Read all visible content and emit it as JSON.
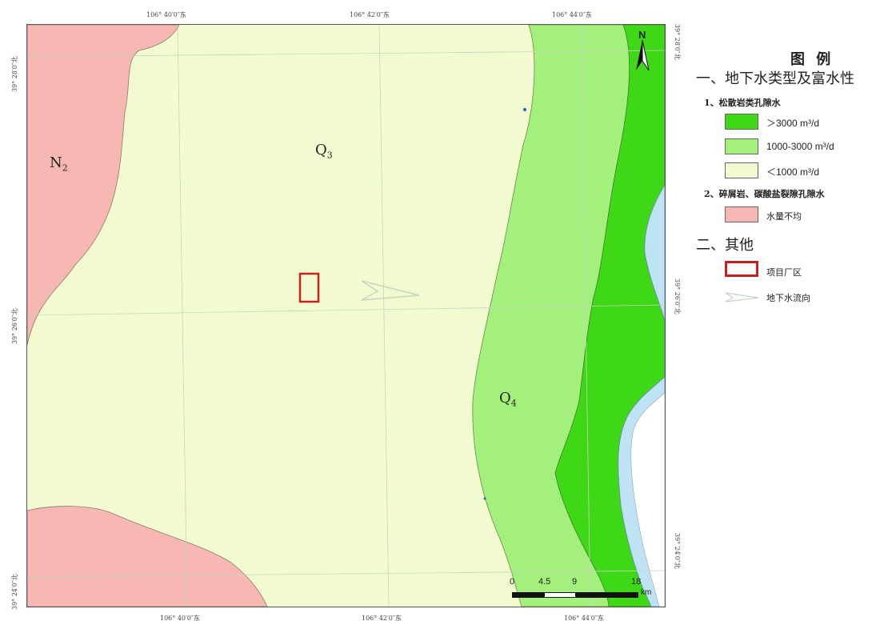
{
  "map": {
    "unit_labels": [
      {
        "base": "N",
        "sub": "2"
      },
      {
        "base": "Q",
        "sub": "3"
      },
      {
        "base": "Q",
        "sub": "4"
      }
    ],
    "top_ticks": [
      "106° 40′0″东",
      "106° 42′0″东",
      "106° 44′0″东"
    ],
    "bottom_ticks": [
      "106° 40′0″东",
      "106° 42′0″东",
      "106° 44′0″东"
    ],
    "left_ticks": [
      "39° 28′0″北",
      "39° 26′0″北",
      "39° 24′0″北"
    ],
    "right_ticks": [
      "39° 28′0″北",
      "39° 26′0″北",
      "39° 24′0″北"
    ],
    "north_label": "N",
    "scale_bar": {
      "labels": [
        "0",
        "4.5",
        "9",
        "18"
      ],
      "unit": "km"
    }
  },
  "legend": {
    "title": "图 例",
    "section1": "一、地下水类型及富水性",
    "sub1": "1、松散岩类孔隙水",
    "sub2": "2、碎屑岩、碳酸盐裂隙孔隙水",
    "section2": "二、其他",
    "items": [
      {
        "label": "＞3000 m³/d",
        "color": "#3fd817"
      },
      {
        "label": "1000-3000 m³/d",
        "color": "#a3f07c"
      },
      {
        "label": "＜1000 m³/d",
        "color": "#f1fbcf"
      },
      {
        "label": "水量不均",
        "color": "#f7b8b4"
      }
    ],
    "project_label": "项目厂区",
    "project_color": "#cc1f1f",
    "flow_label": "地下水流向"
  },
  "colors": {
    "river": "#bfe3f5",
    "grid": "#cfd6c4"
  }
}
